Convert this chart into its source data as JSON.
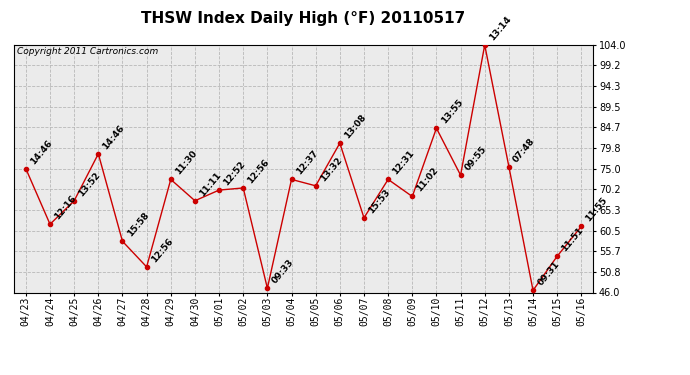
{
  "title": "THSW Index Daily High (°F) 20110517",
  "copyright": "Copyright 2011 Cartronics.com",
  "x_labels": [
    "04/23",
    "04/24",
    "04/25",
    "04/26",
    "04/27",
    "04/28",
    "04/29",
    "04/30",
    "05/01",
    "05/02",
    "05/03",
    "05/04",
    "05/05",
    "05/06",
    "05/07",
    "05/08",
    "05/09",
    "05/10",
    "05/11",
    "05/12",
    "05/13",
    "05/14",
    "05/15",
    "05/16"
  ],
  "y_values": [
    75.0,
    62.0,
    67.5,
    78.5,
    58.0,
    52.0,
    72.5,
    67.5,
    70.0,
    70.5,
    47.0,
    72.5,
    71.0,
    81.0,
    63.5,
    72.5,
    68.5,
    84.5,
    73.5,
    104.0,
    75.5,
    46.5,
    54.5,
    61.5
  ],
  "point_labels": [
    "14:46",
    "12:16",
    "13:52",
    "14:46",
    "15:58",
    "12:56",
    "11:30",
    "11:11",
    "12:52",
    "12:56",
    "09:33",
    "12:37",
    "13:32",
    "13:08",
    "15:53",
    "12:31",
    "11:02",
    "13:55",
    "09:55",
    "13:14",
    "07:48",
    "09:31",
    "11:51",
    "11:55"
  ],
  "line_color": "#cc0000",
  "marker_color": "#cc0000",
  "bg_color": "#ffffff",
  "plot_bg_color": "#ebebeb",
  "grid_color": "#b8b8b8",
  "title_fontsize": 11,
  "tick_fontsize": 7,
  "label_fontsize": 6.5,
  "copyright_fontsize": 6.5,
  "ylim": [
    46.0,
    104.0
  ],
  "ytick_values": [
    46.0,
    50.8,
    55.7,
    60.5,
    65.3,
    70.2,
    75.0,
    79.8,
    84.7,
    89.5,
    94.3,
    99.2,
    104.0
  ],
  "ytick_labels": [
    "46.0",
    "50.8",
    "55.7",
    "60.5",
    "65.3",
    "70.2",
    "75.0",
    "79.8",
    "84.7",
    "89.5",
    "94.3",
    "99.2",
    "104.0"
  ]
}
